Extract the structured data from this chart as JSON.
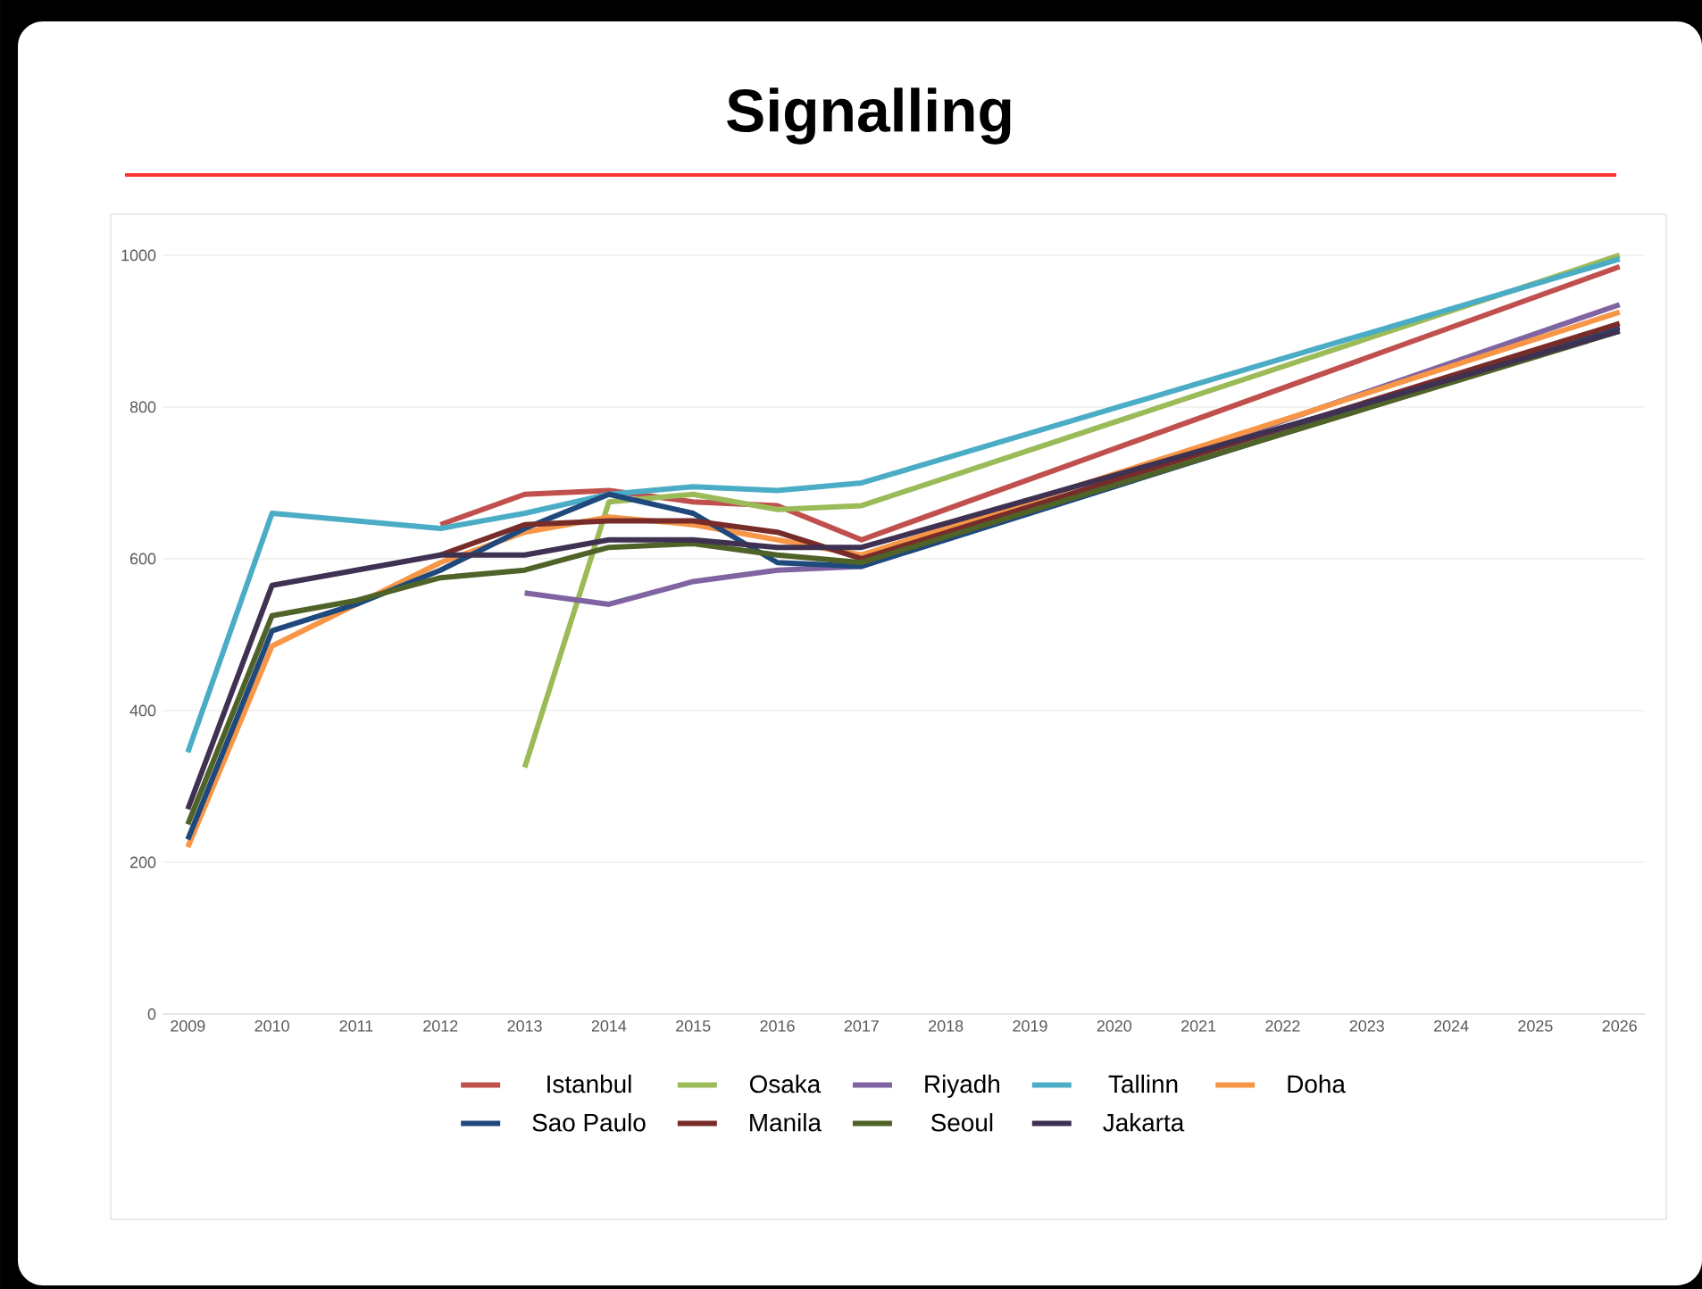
{
  "chart_data": {
    "type": "line",
    "title": "Signalling",
    "xlim": [
      2008.7,
      2026.3
    ],
    "xticks": [
      2009,
      2010,
      2011,
      2012,
      2013,
      2014,
      2015,
      2016,
      2017,
      2018,
      2019,
      2020,
      2021,
      2022,
      2023,
      2024,
      2025,
      2026
    ],
    "ylim": [
      0,
      1000
    ],
    "yticks": [
      0,
      200,
      400,
      600,
      800,
      1000
    ],
    "grid": "y",
    "legend": "bottom",
    "line_style": "solid",
    "marker": "none",
    "series": [
      {
        "name": "Istanbul",
        "color": "#c0504d",
        "x": [
          2012,
          2013,
          2014,
          2015,
          2016,
          2017,
          2026
        ],
        "values": [
          645,
          685,
          690,
          675,
          670,
          625,
          985
        ]
      },
      {
        "name": "Osaka",
        "color": "#9bbb59",
        "x": [
          2013,
          2014,
          2015,
          2016,
          2017,
          2026
        ],
        "values": [
          325,
          675,
          685,
          665,
          670,
          1000
        ]
      },
      {
        "name": "Riyadh",
        "color": "#8064a2",
        "x": [
          2013,
          2014,
          2015,
          2016,
          2017,
          2026
        ],
        "values": [
          555,
          540,
          570,
          585,
          590,
          935
        ]
      },
      {
        "name": "Tallinn",
        "color": "#4bacc6",
        "x": [
          2009,
          2010,
          2012,
          2013,
          2014,
          2015,
          2016,
          2017,
          2026
        ],
        "values": [
          345,
          660,
          640,
          660,
          685,
          695,
          690,
          700,
          995
        ]
      },
      {
        "name": "Doha",
        "color": "#f79646",
        "x": [
          2009,
          2010,
          2011,
          2012,
          2013,
          2014,
          2015,
          2016,
          2017,
          2026
        ],
        "values": [
          220,
          485,
          540,
          595,
          635,
          655,
          645,
          625,
          605,
          925
        ]
      },
      {
        "name": "Sao Paulo",
        "color": "#1f497d",
        "x": [
          2009,
          2010,
          2011,
          2012,
          2013,
          2014,
          2015,
          2016,
          2017,
          2026
        ],
        "values": [
          230,
          505,
          540,
          585,
          640,
          685,
          660,
          595,
          590,
          905
        ]
      },
      {
        "name": "Manila",
        "color": "#772c2a",
        "x": [
          2012,
          2013,
          2014,
          2015,
          2016,
          2017,
          2026
        ],
        "values": [
          605,
          645,
          650,
          650,
          635,
          600,
          910
        ]
      },
      {
        "name": "Seoul",
        "color": "#4f6228",
        "x": [
          2009,
          2010,
          2011,
          2012,
          2013,
          2014,
          2015,
          2016,
          2017,
          2026
        ],
        "values": [
          250,
          525,
          545,
          575,
          585,
          615,
          620,
          605,
          595,
          900
        ]
      },
      {
        "name": "Jakarta",
        "color": "#3f3151",
        "x": [
          2009,
          2010,
          2011,
          2012,
          2013,
          2014,
          2015,
          2016,
          2017,
          2026
        ],
        "values": [
          270,
          565,
          585,
          605,
          605,
          625,
          625,
          615,
          615,
          900
        ]
      }
    ]
  }
}
